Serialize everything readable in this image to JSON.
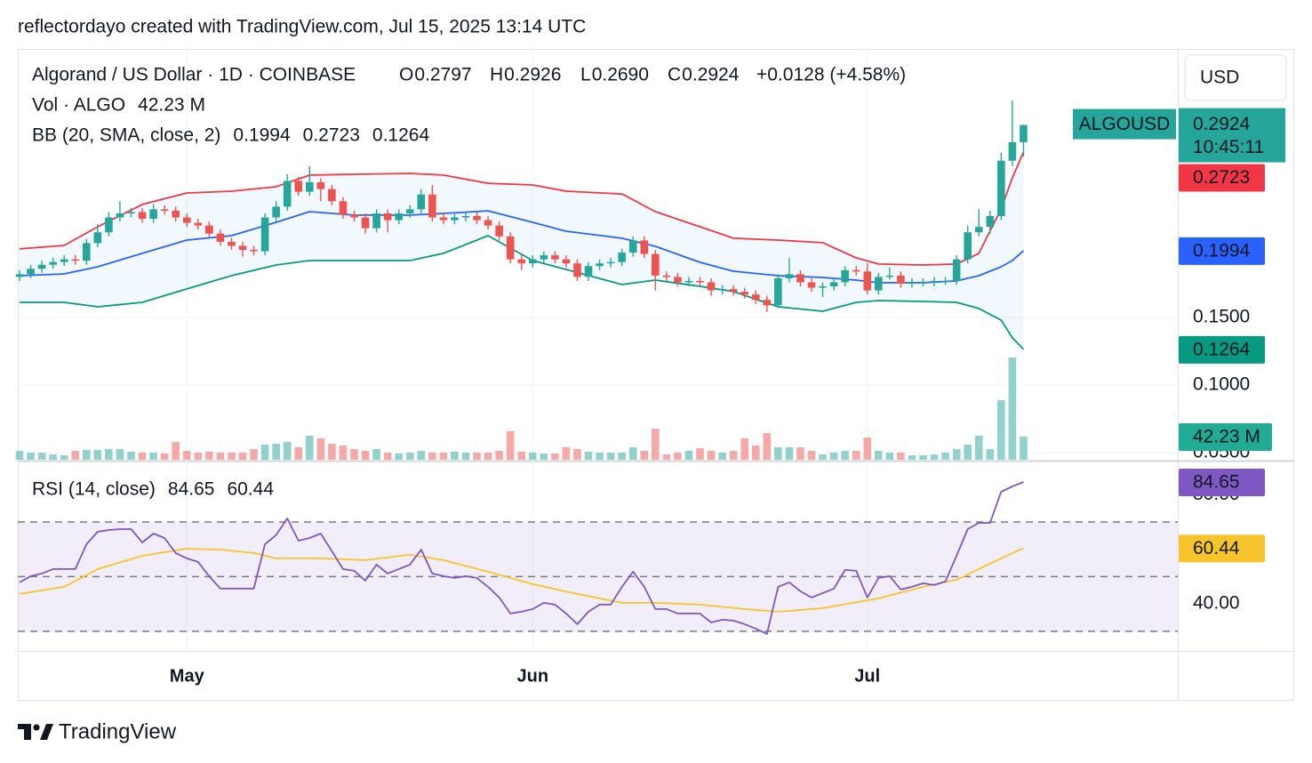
{
  "chart_data": {
    "type": "candlestick",
    "header": "reflectordayo created with TradingView.com, Jul 15, 2025 13:14 UTC",
    "title": "Algorand / US Dollar · 1D · COINBASE",
    "legend_letters": [
      "O",
      "H",
      "L",
      "C"
    ],
    "change": "+0.0128 (+4.58%)",
    "currency": "USD",
    "symbol_tag": "ALGOUSD",
    "countdown": "10:45:11",
    "footer": "TradingView",
    "up_color": "#26a69a",
    "down_color": "#ef5350",
    "legend_value_color": "#089981",
    "open": [
      0.18,
      0.182,
      0.186,
      0.189,
      0.191,
      0.193,
      0.192,
      0.205,
      0.213,
      0.224,
      0.227,
      0.228,
      0.223,
      0.23,
      0.229,
      0.224,
      0.22,
      0.218,
      0.212,
      0.206,
      0.203,
      0.2,
      0.199,
      0.224,
      0.232,
      0.251,
      0.243,
      0.25,
      0.245,
      0.236,
      0.226,
      0.224,
      0.216,
      0.227,
      0.222,
      0.227,
      0.23,
      0.241,
      0.224,
      0.222,
      0.224,
      0.225,
      0.222,
      0.218,
      0.21,
      0.193,
      0.19,
      0.193,
      0.196,
      0.193,
      0.19,
      0.18,
      0.188,
      0.19,
      0.191,
      0.198,
      0.207,
      0.197,
      0.181,
      0.18,
      0.176,
      0.177,
      0.176,
      0.17,
      0.171,
      0.169,
      0.167,
      0.163,
      0.159,
      0.179,
      0.182,
      0.176,
      0.172,
      0.173,
      0.176,
      0.185,
      0.184,
      0.17,
      0.18,
      0.181,
      0.175,
      0.176,
      0.176,
      0.177,
      0.177,
      0.193,
      0.213,
      0.217,
      0.225,
      0.266,
      0.2797
    ],
    "high": [
      0.185,
      0.189,
      0.192,
      0.194,
      0.196,
      0.196,
      0.208,
      0.219,
      0.228,
      0.236,
      0.231,
      0.231,
      0.234,
      0.233,
      0.232,
      0.227,
      0.223,
      0.221,
      0.215,
      0.209,
      0.206,
      0.203,
      0.227,
      0.236,
      0.256,
      0.254,
      0.262,
      0.253,
      0.248,
      0.239,
      0.229,
      0.227,
      0.23,
      0.23,
      0.23,
      0.233,
      0.245,
      0.248,
      0.227,
      0.227,
      0.228,
      0.228,
      0.225,
      0.221,
      0.213,
      0.196,
      0.196,
      0.199,
      0.199,
      0.196,
      0.193,
      0.191,
      0.193,
      0.194,
      0.201,
      0.21,
      0.21,
      0.2,
      0.184,
      0.183,
      0.18,
      0.18,
      0.179,
      0.174,
      0.174,
      0.172,
      0.17,
      0.166,
      0.182,
      0.194,
      0.185,
      0.179,
      0.176,
      0.179,
      0.188,
      0.188,
      0.19,
      0.183,
      0.187,
      0.184,
      0.179,
      0.179,
      0.18,
      0.18,
      0.196,
      0.218,
      0.23,
      0.229,
      0.272,
      0.3105,
      0.2926
    ],
    "low": [
      0.177,
      0.179,
      0.183,
      0.186,
      0.188,
      0.189,
      0.189,
      0.202,
      0.21,
      0.221,
      0.224,
      0.22,
      0.22,
      0.226,
      0.221,
      0.217,
      0.215,
      0.209,
      0.203,
      0.2,
      0.195,
      0.196,
      0.196,
      0.221,
      0.229,
      0.24,
      0.24,
      0.236,
      0.233,
      0.223,
      0.221,
      0.212,
      0.213,
      0.213,
      0.219,
      0.224,
      0.227,
      0.221,
      0.219,
      0.219,
      0.221,
      0.219,
      0.215,
      0.207,
      0.19,
      0.185,
      0.187,
      0.19,
      0.19,
      0.187,
      0.177,
      0.177,
      0.185,
      0.187,
      0.188,
      0.195,
      0.194,
      0.17,
      0.177,
      0.173,
      0.173,
      0.173,
      0.166,
      0.167,
      0.166,
      0.164,
      0.16,
      0.154,
      0.157,
      0.176,
      0.173,
      0.169,
      0.165,
      0.17,
      0.173,
      0.181,
      0.167,
      0.167,
      0.178,
      0.172,
      0.172,
      0.173,
      0.173,
      0.174,
      0.174,
      0.19,
      0.21,
      0.212,
      0.222,
      0.262,
      0.269
    ],
    "close": [
      0.182,
      0.186,
      0.189,
      0.191,
      0.193,
      0.192,
      0.205,
      0.213,
      0.224,
      0.227,
      0.228,
      0.223,
      0.23,
      0.229,
      0.224,
      0.22,
      0.218,
      0.212,
      0.206,
      0.203,
      0.2,
      0.199,
      0.224,
      0.232,
      0.251,
      0.243,
      0.25,
      0.245,
      0.236,
      0.226,
      0.224,
      0.216,
      0.227,
      0.222,
      0.227,
      0.23,
      0.241,
      0.224,
      0.222,
      0.224,
      0.225,
      0.222,
      0.218,
      0.21,
      0.193,
      0.19,
      0.193,
      0.196,
      0.193,
      0.19,
      0.18,
      0.188,
      0.19,
      0.191,
      0.198,
      0.207,
      0.197,
      0.181,
      0.18,
      0.176,
      0.177,
      0.176,
      0.17,
      0.171,
      0.169,
      0.167,
      0.163,
      0.159,
      0.179,
      0.182,
      0.176,
      0.172,
      0.173,
      0.176,
      0.185,
      0.184,
      0.17,
      0.18,
      0.181,
      0.175,
      0.176,
      0.176,
      0.177,
      0.177,
      0.193,
      0.213,
      0.217,
      0.225,
      0.266,
      0.2796,
      0.2924
    ],
    "low_value_labels": {
      "90": "0.2690"
    },
    "xlim": [
      -0.16,
      103.83
    ],
    "xticks": [
      {
        "value": 15,
        "label": "May"
      },
      {
        "value": 46,
        "label": "Jun"
      },
      {
        "value": 76,
        "label": "Jul"
      }
    ],
    "ylim": [
      0.0447,
      0.3487
    ],
    "yticks": [
      {
        "value": 0.15,
        "label": "0.1500"
      },
      {
        "value": 0.1,
        "label": "0.1000"
      },
      {
        "value": 0.05,
        "label": "0.0500"
      }
    ],
    "grid": true,
    "volume": {
      "title": "Vol · ALGO",
      "last_label": "42.23 M",
      "up_color": "rgba(38,166,154,0.5)",
      "down_color": "rgba(239,83,80,0.5)",
      "label_color": "#22ab94",
      "values": [
        16.2,
        13.0,
        13.0,
        9.7,
        8.1,
        16.2,
        17.9,
        17.9,
        19.5,
        19.5,
        14.6,
        13.0,
        13.0,
        11.4,
        32.5,
        16.2,
        13.0,
        14.6,
        13.0,
        13.0,
        13.0,
        19.5,
        27.6,
        29.2,
        32.5,
        22.7,
        43.9,
        39.0,
        29.2,
        26.0,
        19.5,
        16.2,
        19.5,
        13.0,
        11.4,
        13.0,
        16.2,
        13.0,
        13.0,
        14.6,
        13.0,
        13.0,
        13.0,
        16.2,
        52.0,
        14.6,
        13.0,
        11.4,
        11.4,
        22.7,
        19.5,
        14.6,
        13.0,
        13.0,
        13.0,
        22.7,
        16.2,
        56.8,
        9.7,
        13.0,
        16.2,
        21.1,
        16.2,
        13.0,
        16.2,
        39.0,
        26.0,
        48.7,
        22.7,
        22.7,
        22.7,
        16.2,
        9.7,
        13.0,
        16.2,
        16.2,
        40.6,
        16.2,
        13.0,
        13.0,
        8.1,
        8.1,
        9.7,
        13.0,
        19.5,
        27.6,
        43.9,
        19.5,
        108.8,
        186.8,
        42.23
      ]
    },
    "bb": {
      "title": "BB (20, SMA, close, 2)",
      "fill": "rgba(33,150,243,0.06)",
      "x": [
        0,
        4,
        7,
        11,
        15,
        19,
        23,
        26,
        30,
        35,
        38,
        42,
        46,
        49,
        54,
        57,
        61,
        64,
        68,
        72,
        75,
        77,
        81,
        84,
        86,
        88,
        89,
        90
      ],
      "basis": {
        "color": "#2962ff",
        "values": [
          0.1809,
          0.1822,
          0.1875,
          0.1974,
          0.2072,
          0.2105,
          0.2204,
          0.2283,
          0.2257,
          0.2257,
          0.227,
          0.2289,
          0.2204,
          0.2138,
          0.2086,
          0.2026,
          0.1908,
          0.1842,
          0.1809,
          0.1796,
          0.1776,
          0.1757,
          0.1757,
          0.177,
          0.1809,
          0.1875,
          0.1921,
          0.1994
        ]
      },
      "upper": {
        "color": "#f23645",
        "values": [
          0.2007,
          0.2033,
          0.2171,
          0.2336,
          0.2421,
          0.2434,
          0.2467,
          0.2553,
          0.2559,
          0.2566,
          0.2553,
          0.2493,
          0.248,
          0.2434,
          0.2414,
          0.2283,
          0.2171,
          0.2086,
          0.2072,
          0.2053,
          0.1941,
          0.1895,
          0.1888,
          0.1895,
          0.1974,
          0.2303,
          0.2533,
          0.2723
        ]
      },
      "lower": {
        "color": "#089981",
        "values": [
          0.1612,
          0.1612,
          0.1579,
          0.1612,
          0.1711,
          0.1809,
          0.1888,
          0.1921,
          0.1921,
          0.1921,
          0.1974,
          0.2105,
          0.1921,
          0.1855,
          0.1743,
          0.1776,
          0.173,
          0.1691,
          0.1579,
          0.1546,
          0.1612,
          0.1625,
          0.1618,
          0.1612,
          0.1566,
          0.148,
          0.1349,
          0.1264
        ]
      }
    },
    "rsi": {
      "title": "RSI (14, close)",
      "ylim": [
        22.8,
        91.8
      ],
      "yticks": [
        {
          "value": 80,
          "label": "80.00"
        },
        {
          "value": 40,
          "label": "40.00"
        }
      ],
      "levels": [
        70,
        50,
        30
      ],
      "band_color": "rgba(126,87,194,0.1)",
      "line": {
        "color": "#7e57c2",
        "values": [
          47.89,
          50.16,
          51.14,
          52.76,
          52.76,
          52.76,
          61.87,
          66.42,
          67.07,
          67.4,
          67.4,
          62.52,
          65.77,
          64.15,
          58.62,
          56.67,
          55.37,
          50.16,
          45.61,
          45.61,
          45.61,
          45.61,
          61.87,
          65.2,
          71.3,
          63.17,
          64.15,
          65.77,
          59.27,
          52.76,
          52.11,
          48.54,
          54.39,
          51.14,
          52.76,
          54.39,
          59.92,
          51.14,
          50.16,
          49.51,
          50.16,
          49.51,
          46.26,
          42.36,
          36.5,
          37.15,
          38.13,
          40.41,
          39.76,
          36.5,
          32.6,
          37.15,
          39.76,
          39.76,
          46.26,
          51.79,
          46.26,
          38.13,
          38.13,
          36.5,
          36.5,
          36.5,
          33.25,
          34.23,
          33.9,
          32.6,
          30.98,
          29.03,
          46.26,
          47.89,
          44.63,
          42.36,
          43.98,
          45.61,
          52.44,
          52.11,
          42.36,
          49.51,
          50.16,
          45.28,
          46.26,
          47.56,
          46.91,
          48.21,
          57.64,
          67.4,
          69.67,
          69.67,
          81.06,
          83.01,
          84.65
        ]
      },
      "ma": {
        "color": "#f7c52b",
        "x": [
          0,
          4,
          7,
          11,
          15,
          18,
          21,
          23,
          27,
          31,
          35,
          38,
          42,
          46,
          50,
          54,
          57,
          61,
          65,
          68,
          72,
          77,
          81,
          84,
          86,
          88,
          90
        ],
        "values": [
          43.66,
          46.26,
          52.76,
          57.64,
          60.24,
          59.92,
          58.62,
          56.67,
          56.67,
          56.02,
          57.97,
          56.02,
          51.79,
          47.24,
          43.66,
          40.41,
          40.41,
          39.76,
          38.13,
          37.15,
          38.46,
          42.03,
          46.26,
          48.86,
          52.76,
          56.67,
          60.44
        ]
      }
    }
  }
}
